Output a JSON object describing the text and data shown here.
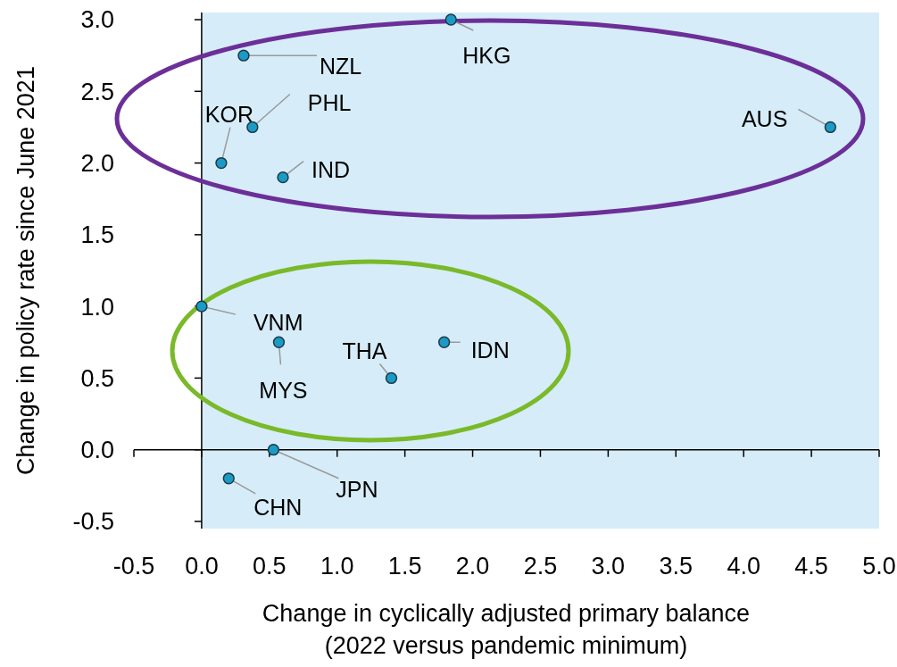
{
  "chart_data": {
    "type": "scatter",
    "xlabel": "Change in cyclically adjusted primary balance\n(2022 versus pandemic minimum)",
    "ylabel": "Change in policy rate since June 2021",
    "series": [
      {
        "color": "#1a9bc6",
        "x": [
          1.84,
          0.31,
          0.375,
          0.145,
          0.6,
          4.64,
          0.0,
          0.57,
          1.79,
          1.4,
          0.53,
          0.2
        ],
        "values": [
          3.0,
          2.75,
          2.25,
          2.0,
          1.9,
          2.25,
          1.0,
          0.75,
          0.75,
          0.5,
          0.0,
          -0.2
        ]
      }
    ],
    "annotations": [
      {
        "text": "HKG",
        "x": 1.84,
        "y": 3.0
      },
      {
        "text": "NZL",
        "x": 0.31,
        "y": 2.75
      },
      {
        "text": "PHL",
        "x": 0.375,
        "y": 2.25
      },
      {
        "text": "KOR",
        "x": 0.145,
        "y": 2.0
      },
      {
        "text": "IND",
        "x": 0.6,
        "y": 1.9
      },
      {
        "text": "AUS",
        "x": 4.64,
        "y": 2.25
      },
      {
        "text": "VNM",
        "x": 0.0,
        "y": 1.0
      },
      {
        "text": "MYS",
        "x": 0.57,
        "y": 0.75
      },
      {
        "text": "IDN",
        "x": 1.79,
        "y": 0.75
      },
      {
        "text": "THA",
        "x": 1.4,
        "y": 0.5
      },
      {
        "text": "JPN",
        "x": 0.53,
        "y": 0.0
      },
      {
        "text": "CHN",
        "x": 0.2,
        "y": -0.2
      }
    ],
    "bands": [
      {
        "axis": "x",
        "from": 0,
        "to": 5.0,
        "color": "#d6ecf8"
      }
    ],
    "marker": "circle",
    "xlim": [
      -0.5,
      5.0
    ],
    "xticks": [
      {
        "value": -0.5,
        "label": "-0.5"
      },
      {
        "value": 0,
        "label": "0.0"
      },
      {
        "value": 0.5,
        "label": "0.5"
      },
      {
        "value": 1,
        "label": "1.0"
      },
      {
        "value": 1.5,
        "label": "1.5"
      },
      {
        "value": 2,
        "label": "2.0"
      },
      {
        "value": 2.5,
        "label": "2.5"
      },
      {
        "value": 3,
        "label": "3.0"
      },
      {
        "value": 3.5,
        "label": "3.5"
      },
      {
        "value": 4,
        "label": "4.0"
      },
      {
        "value": 4.5,
        "label": "4.5"
      },
      {
        "value": 5,
        "label": "5.0"
      }
    ],
    "ylim": [
      -0.55,
      3.05
    ],
    "yticks": [
      {
        "value": -0.5,
        "label": "-0.5"
      },
      {
        "value": 0,
        "label": "0.0"
      },
      {
        "value": 0.5,
        "label": "0.5"
      },
      {
        "value": 1,
        "label": "1.0"
      },
      {
        "value": 1.5,
        "label": "1.5"
      },
      {
        "value": 2,
        "label": "2.0"
      },
      {
        "value": 2.5,
        "label": "2.5"
      },
      {
        "value": 3,
        "label": "3.0"
      }
    ]
  }
}
